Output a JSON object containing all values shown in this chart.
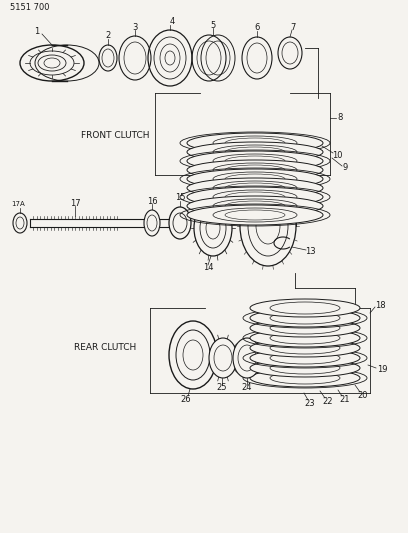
{
  "title": "5151 700",
  "background_color": "#f5f3ef",
  "line_color": "#1a1a1a",
  "label_color": "#1a1a1a",
  "front_clutch_label": "FRONT CLUTCH",
  "rear_clutch_label": "REAR CLUTCH",
  "figsize": [
    4.08,
    5.33
  ],
  "dpi": 100
}
